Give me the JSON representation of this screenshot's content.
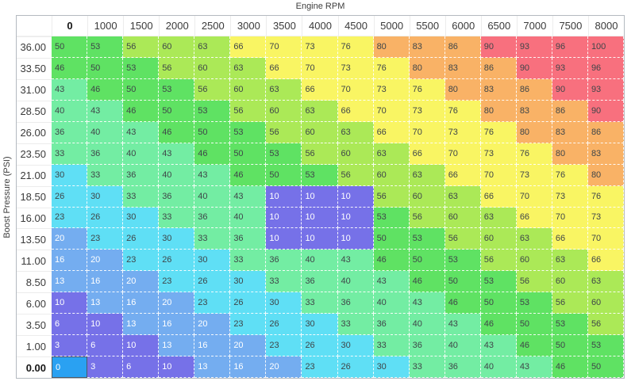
{
  "axes": {
    "top_label": "Engine RPM",
    "left_label": "Boost Pressure (PSI)"
  },
  "chart_data": {
    "type": "heatmap",
    "x_label": "Engine RPM",
    "y_label": "Boost Pressure (PSI)",
    "columns": [
      "0",
      "1000",
      "1500",
      "2000",
      "2500",
      "3000",
      "3500",
      "4000",
      "4500",
      "5000",
      "5500",
      "6000",
      "6500",
      "7000",
      "7500",
      "8000"
    ],
    "rows": [
      "36.00",
      "33.50",
      "31.00",
      "28.50",
      "26.00",
      "23.50",
      "21.00",
      "18.50",
      "16.00",
      "13.50",
      "11.00",
      "8.50",
      "6.00",
      "3.50",
      "1.00",
      "0.00"
    ],
    "values": [
      [
        50,
        53,
        56,
        60,
        63,
        66,
        70,
        73,
        76,
        80,
        83,
        86,
        90,
        93,
        96,
        100
      ],
      [
        46,
        50,
        53,
        56,
        60,
        63,
        66,
        70,
        73,
        76,
        80,
        83,
        86,
        90,
        93,
        96
      ],
      [
        43,
        46,
        50,
        53,
        56,
        60,
        63,
        66,
        70,
        73,
        76,
        80,
        83,
        86,
        90,
        93
      ],
      [
        40,
        43,
        46,
        50,
        53,
        56,
        60,
        63,
        66,
        70,
        73,
        76,
        80,
        83,
        86,
        90
      ],
      [
        36,
        40,
        43,
        46,
        50,
        53,
        56,
        60,
        63,
        66,
        70,
        73,
        76,
        80,
        83,
        86
      ],
      [
        33,
        36,
        40,
        43,
        46,
        50,
        53,
        56,
        60,
        63,
        66,
        70,
        73,
        76,
        80,
        83
      ],
      [
        30,
        33,
        36,
        40,
        43,
        46,
        50,
        53,
        56,
        60,
        63,
        66,
        70,
        73,
        76,
        80
      ],
      [
        26,
        30,
        33,
        36,
        40,
        43,
        10,
        10,
        10,
        56,
        60,
        63,
        66,
        70,
        73,
        76
      ],
      [
        23,
        26,
        30,
        33,
        36,
        40,
        10,
        10,
        10,
        53,
        56,
        60,
        63,
        66,
        70,
        73
      ],
      [
        20,
        23,
        26,
        30,
        33,
        36,
        10,
        10,
        10,
        50,
        53,
        56,
        60,
        63,
        66,
        70
      ],
      [
        16,
        20,
        23,
        26,
        30,
        33,
        36,
        40,
        43,
        46,
        50,
        53,
        56,
        60,
        63,
        66
      ],
      [
        13,
        16,
        20,
        23,
        26,
        30,
        33,
        36,
        40,
        43,
        46,
        50,
        53,
        56,
        60,
        63
      ],
      [
        10,
        13,
        16,
        20,
        23,
        26,
        30,
        33,
        36,
        40,
        43,
        46,
        50,
        53,
        56,
        60
      ],
      [
        6,
        10,
        13,
        16,
        20,
        23,
        26,
        30,
        33,
        36,
        40,
        43,
        46,
        50,
        53,
        56
      ],
      [
        3,
        6,
        10,
        13,
        16,
        20,
        23,
        26,
        30,
        33,
        36,
        40,
        43,
        46,
        50,
        53
      ],
      [
        0,
        3,
        6,
        10,
        13,
        16,
        20,
        23,
        26,
        30,
        33,
        36,
        40,
        43,
        46,
        50
      ]
    ],
    "value_range": [
      0,
      100
    ],
    "selected_cell": {
      "row": "0.00",
      "column": "0",
      "value": 0
    },
    "color_scale": [
      {
        "upto": 10,
        "bg": "#7671e8",
        "fg": "#ffffff"
      },
      {
        "upto": 20,
        "bg": "#74adf0",
        "fg": "#ffffff"
      },
      {
        "upto": 30,
        "bg": "#5fdff5",
        "fg": "#3f4649"
      },
      {
        "upto": 43,
        "bg": "#73eda3",
        "fg": "#3f4649"
      },
      {
        "upto": 53,
        "bg": "#5fe263",
        "fg": "#3f4649"
      },
      {
        "upto": 63,
        "bg": "#abe957",
        "fg": "#3f4649"
      },
      {
        "upto": 76,
        "bg": "#f9f563",
        "fg": "#3f4649"
      },
      {
        "upto": 86,
        "bg": "#f9b266",
        "fg": "#3f4649"
      },
      {
        "upto": 100,
        "bg": "#f8707e",
        "fg": "#3f4649"
      }
    ],
    "selected_style": {
      "bg": "#2aa1f2",
      "border": "#4d5a66",
      "fg": "#ffffff"
    }
  }
}
